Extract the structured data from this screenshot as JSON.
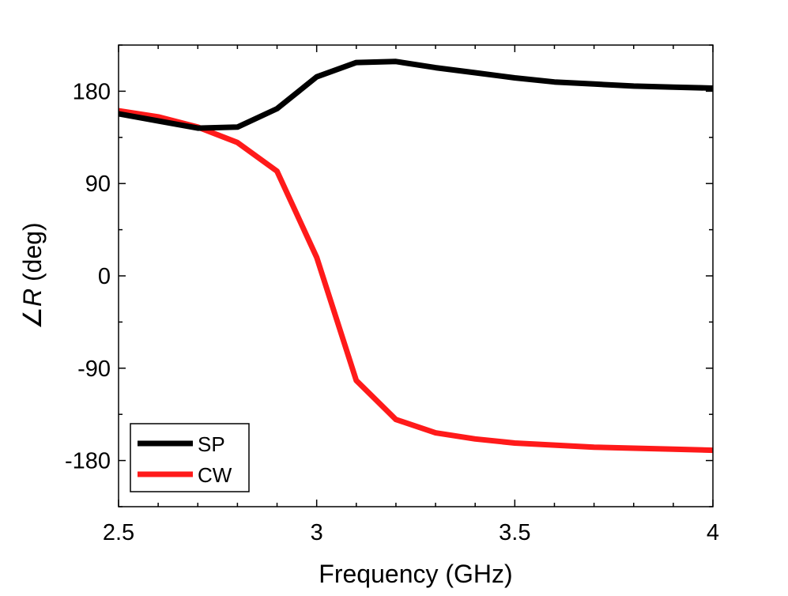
{
  "chart_data": {
    "type": "line",
    "title": "",
    "xlabel": "Frequency (GHz)",
    "ylabel_symbol": "∠",
    "ylabel_var": "R",
    "ylabel_unit": " (deg)",
    "xlim": [
      2.5,
      4.0
    ],
    "ylim": [
      -225,
      225
    ],
    "x_ticks": [
      2.5,
      3.0,
      3.5,
      4.0
    ],
    "x_tick_labels": [
      "2.5",
      "3",
      "3.5",
      "4"
    ],
    "y_ticks": [
      -180,
      -90,
      0,
      90,
      180
    ],
    "y_tick_labels": [
      "-180",
      "-90",
      "0",
      "90",
      "180"
    ],
    "grid": false,
    "legend_position": "bottom-left",
    "x": [
      2.5,
      2.6,
      2.7,
      2.8,
      2.9,
      3.0,
      3.1,
      3.2,
      3.3,
      3.4,
      3.5,
      3.6,
      3.7,
      3.8,
      3.9,
      4.0
    ],
    "series": [
      {
        "name": "SP",
        "color": "#000000",
        "values": [
          158,
          151,
          144,
          145,
          163,
          194,
          208,
          209,
          203,
          198,
          193,
          189,
          187,
          185,
          184,
          183
        ]
      },
      {
        "name": "CW",
        "color": "#ff1a1a",
        "values": [
          161,
          155,
          145,
          130,
          102,
          18,
          -102,
          -140,
          -153,
          -159,
          -163,
          -165,
          -167,
          -168,
          -169,
          -170
        ]
      }
    ]
  }
}
